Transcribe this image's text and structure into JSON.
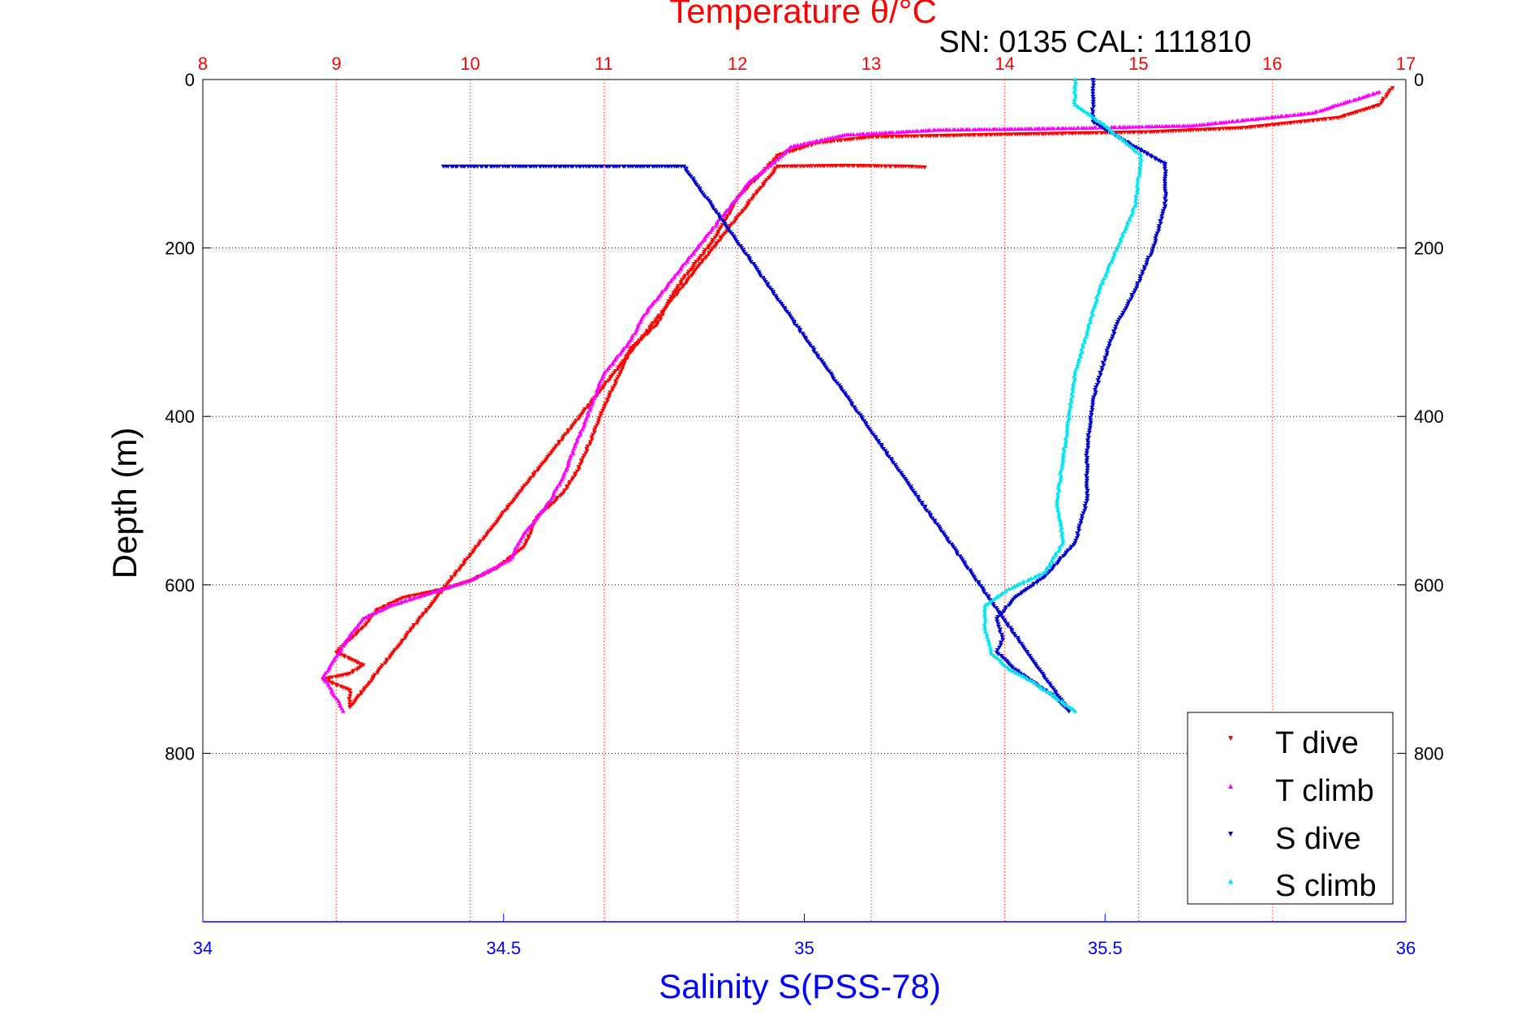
{
  "chart_data": {
    "type": "scatter",
    "title": "Temperature θ/°C",
    "annotation": "SN: 0135  CAL: 111810",
    "xlabel_top": "Temperature θ/°C",
    "xlabel_bottom": "Salinity S(PSS-78)",
    "ylabel": "Depth (m)",
    "grid": true,
    "legend_position": "bottom-right",
    "colors": {
      "t_dive": "#ff0000",
      "t_climb": "#ff00ff",
      "s_dive": "#0000cc",
      "s_climb": "#00e5ee",
      "top_axis": "#ff0000",
      "bottom_axis": "#0000ff"
    },
    "temp_axis": {
      "min": 8,
      "max": 17,
      "ticks": [
        "8",
        "9",
        "10",
        "11",
        "12",
        "13",
        "14",
        "15",
        "16",
        "17"
      ]
    },
    "sal_axis": {
      "min": 34,
      "max": 36,
      "ticks": [
        "34",
        "34.5",
        "35",
        "35.5",
        "36"
      ]
    },
    "depth_axis": {
      "min": 0,
      "max": 1000,
      "reversed": true,
      "ticks": [
        "0",
        "200",
        "400",
        "600",
        "800"
      ],
      "tick_values": [
        0,
        200,
        400,
        600,
        800
      ]
    },
    "series": [
      {
        "name": "T dive",
        "variable": "temperature",
        "marker": "triangle-down",
        "points": [
          [
            16.9,
            10
          ],
          [
            16.8,
            30
          ],
          [
            16.5,
            45
          ],
          [
            15.8,
            57
          ],
          [
            15.1,
            62
          ],
          [
            14.0,
            65
          ],
          [
            13.0,
            68
          ],
          [
            12.6,
            75
          ],
          [
            12.3,
            90
          ],
          [
            12.2,
            108
          ],
          [
            12.0,
            140
          ],
          [
            11.9,
            170
          ],
          [
            11.8,
            195
          ],
          [
            11.6,
            235
          ],
          [
            11.5,
            260
          ],
          [
            11.4,
            290
          ],
          [
            11.2,
            320
          ],
          [
            11.1,
            355
          ],
          [
            11.0,
            390
          ],
          [
            10.9,
            430
          ],
          [
            10.8,
            465
          ],
          [
            10.7,
            490
          ],
          [
            10.5,
            520
          ],
          [
            10.4,
            555
          ],
          [
            10.2,
            580
          ],
          [
            10.0,
            595
          ],
          [
            9.8,
            605
          ],
          [
            9.5,
            615
          ],
          [
            9.3,
            630
          ],
          [
            9.2,
            650
          ],
          [
            9.1,
            665
          ],
          [
            9.0,
            680
          ],
          [
            9.2,
            695
          ],
          [
            9.1,
            705
          ],
          [
            8.9,
            712
          ],
          [
            9.1,
            725
          ],
          [
            9.1,
            745
          ],
          [
            12.3,
            103
          ],
          [
            12.8,
            102
          ],
          [
            13.3,
            103
          ],
          [
            13.4,
            104
          ]
        ]
      },
      {
        "name": "T climb",
        "variable": "temperature",
        "marker": "triangle-up",
        "points": [
          [
            16.8,
            15
          ],
          [
            16.3,
            40
          ],
          [
            15.4,
            55
          ],
          [
            14.5,
            58
          ],
          [
            13.5,
            60
          ],
          [
            12.8,
            66
          ],
          [
            12.4,
            80
          ],
          [
            12.3,
            95
          ],
          [
            12.1,
            120
          ],
          [
            11.9,
            160
          ],
          [
            11.7,
            200
          ],
          [
            11.5,
            240
          ],
          [
            11.3,
            280
          ],
          [
            11.2,
            310
          ],
          [
            11.0,
            350
          ],
          [
            10.9,
            390
          ],
          [
            10.8,
            430
          ],
          [
            10.7,
            470
          ],
          [
            10.6,
            500
          ],
          [
            10.4,
            540
          ],
          [
            10.3,
            570
          ],
          [
            10.0,
            595
          ],
          [
            9.7,
            610
          ],
          [
            9.4,
            625
          ],
          [
            9.2,
            640
          ],
          [
            9.1,
            660
          ],
          [
            9.0,
            685
          ],
          [
            8.9,
            710
          ],
          [
            9.0,
            735
          ],
          [
            9.05,
            750
          ]
        ]
      },
      {
        "name": "S dive",
        "variable": "salinity",
        "marker": "triangle-down",
        "points": [
          [
            35.48,
            0
          ],
          [
            35.48,
            20
          ],
          [
            35.48,
            50
          ],
          [
            35.55,
            80
          ],
          [
            35.6,
            100
          ],
          [
            35.6,
            150
          ],
          [
            35.58,
            200
          ],
          [
            35.55,
            250
          ],
          [
            35.52,
            290
          ],
          [
            35.5,
            330
          ],
          [
            35.48,
            380
          ],
          [
            35.47,
            440
          ],
          [
            35.47,
            500
          ],
          [
            35.45,
            550
          ],
          [
            35.4,
            590
          ],
          [
            35.35,
            615
          ],
          [
            35.32,
            640
          ],
          [
            35.33,
            665
          ],
          [
            35.32,
            680
          ],
          [
            35.35,
            700
          ],
          [
            35.38,
            715
          ],
          [
            35.42,
            735
          ],
          [
            35.44,
            750
          ],
          [
            34.8,
            103
          ],
          [
            34.6,
            103
          ],
          [
            34.4,
            103
          ]
        ]
      },
      {
        "name": "S climb",
        "variable": "salinity",
        "marker": "triangle-up",
        "points": [
          [
            35.45,
            0
          ],
          [
            35.45,
            30
          ],
          [
            35.5,
            55
          ],
          [
            35.56,
            90
          ],
          [
            35.55,
            150
          ],
          [
            35.52,
            200
          ],
          [
            35.49,
            250
          ],
          [
            35.47,
            300
          ],
          [
            35.45,
            350
          ],
          [
            35.44,
            400
          ],
          [
            35.43,
            450
          ],
          [
            35.42,
            500
          ],
          [
            35.43,
            550
          ],
          [
            35.4,
            585
          ],
          [
            35.34,
            605
          ],
          [
            35.3,
            625
          ],
          [
            35.3,
            650
          ],
          [
            35.31,
            680
          ],
          [
            35.34,
            700
          ],
          [
            35.38,
            715
          ],
          [
            35.42,
            735
          ],
          [
            35.45,
            750
          ]
        ]
      }
    ],
    "legend": [
      "T dive",
      "T climb",
      "S dive",
      "S climb"
    ]
  }
}
